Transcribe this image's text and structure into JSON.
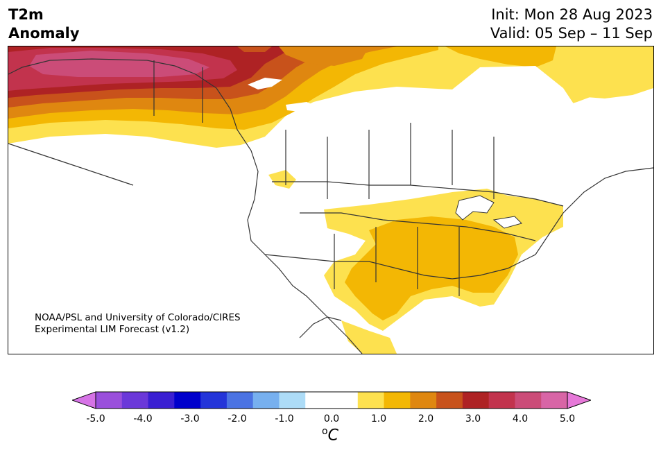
{
  "title": {
    "left_line1": "T2m",
    "left_line2": "Anomaly",
    "init": "Init: Mon 28 Aug 2023",
    "valid": "Valid: 05 Sep – 11 Sep"
  },
  "credit": {
    "line1": "NOAA/PSL and University of Colorado/CIRES",
    "line2": "Experimental LIM Forecast (v1.2)"
  },
  "colorbar": {
    "colors": [
      "#d673e6",
      "#9a4fdc",
      "#6b38d9",
      "#3a1fd2",
      "#0000cc",
      "#2435d9",
      "#4b73e3",
      "#77b0ef",
      "#addcf7",
      "#ffffff",
      "#ffffff",
      "#fde14f",
      "#f3b704",
      "#df8710",
      "#c8521b",
      "#ae2224",
      "#c2334d",
      "#cb4c78",
      "#d865a6",
      "#e678d8"
    ],
    "ticks": [
      "-5.0",
      "-4.0",
      "-3.0",
      "-2.0",
      "-1.0",
      "0.0",
      "1.0",
      "2.0",
      "3.0",
      "4.0",
      "5.0"
    ],
    "unit_symbol": "o",
    "unit_letter": "C"
  }
}
